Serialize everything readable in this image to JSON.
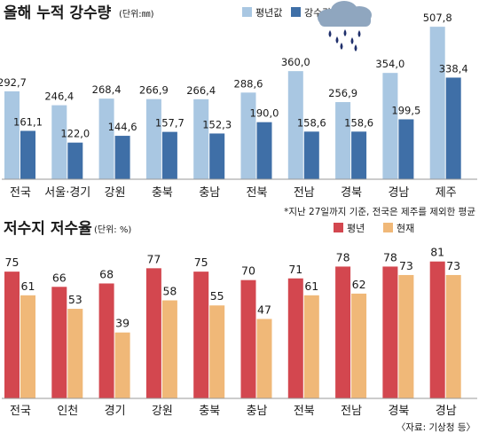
{
  "colors": {
    "normal_rain": "#a9c7e2",
    "actual_rain": "#3f6fa7",
    "normal_reservoir": "#d3474f",
    "current_reservoir": "#f0b878",
    "ink": "#1a1a1a",
    "grid": "#9a9a9a",
    "cloud": "#8fa6bf",
    "drops": "#1f2f6b"
  },
  "icons": [
    "rain-cloud-icon"
  ],
  "chart_data": [
    {
      "type": "bar",
      "title": "올해 누적 강수량",
      "unit": "(단위:㎜)",
      "categories": [
        "전국",
        "서울·경기",
        "강원",
        "충북",
        "충남",
        "전북",
        "전남",
        "경북",
        "경남",
        "제주"
      ],
      "series": [
        {
          "name": "평년값",
          "values": [
            292.7,
            246.4,
            268.4,
            266.9,
            266.4,
            288.6,
            360.0,
            256.9,
            354.0,
            507.8
          ],
          "labels": [
            "292,7",
            "246,4",
            "268,4",
            "266,9",
            "266,4",
            "288,6",
            "360,0",
            "256,9",
            "354,0",
            "507,8"
          ]
        },
        {
          "name": "강수량",
          "values": [
            161.1,
            122.0,
            144.6,
            157.7,
            152.3,
            190.0,
            158.6,
            158.6,
            199.5,
            338.4
          ],
          "labels": [
            "161,1",
            "122,0",
            "144,6",
            "157,7",
            "152,3",
            "190,0",
            "158,6",
            "158,6",
            "199,5",
            "338,4"
          ]
        }
      ],
      "ylim": [
        0,
        520
      ],
      "legend": "top-right",
      "footnote": "*지난 27일까지 기준, 전국은 제주를 제외한 평균"
    },
    {
      "type": "bar",
      "title": "저수지 저수율",
      "unit": "(단위: %)",
      "categories": [
        "전국",
        "인천",
        "경기",
        "강원",
        "충북",
        "충남",
        "전북",
        "전남",
        "경북",
        "경남"
      ],
      "series": [
        {
          "name": "평년",
          "values": [
            75,
            66,
            68,
            77,
            75,
            70,
            71,
            78,
            78,
            81
          ]
        },
        {
          "name": "현재",
          "values": [
            61,
            53,
            39,
            58,
            55,
            47,
            61,
            62,
            73,
            73
          ]
        }
      ],
      "ylim": [
        0,
        84
      ],
      "legend": "top-right",
      "source": "〈자료: 기상청 등〉"
    }
  ]
}
